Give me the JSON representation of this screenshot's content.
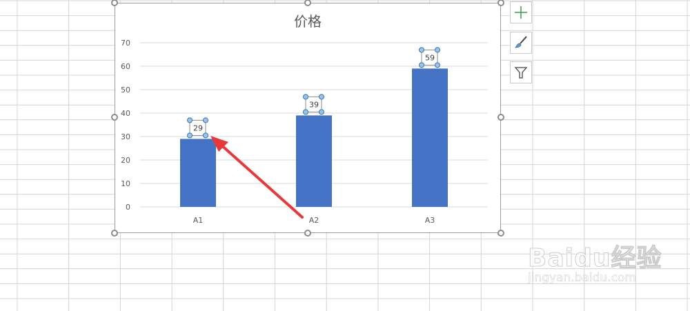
{
  "chart_data": {
    "type": "bar",
    "title": "价格",
    "categories": [
      "A1",
      "A2",
      "A3"
    ],
    "values": [
      29,
      39,
      59
    ],
    "data_labels": [
      "29",
      "39",
      "59"
    ],
    "ylim": [
      0,
      70
    ],
    "yticks": [
      "0",
      "10",
      "20",
      "30",
      "40",
      "50",
      "60",
      "70"
    ],
    "grid": true,
    "bar_color": "#4472C4",
    "data_labels_selected": true
  },
  "side_buttons": [
    {
      "icon": "plus-icon",
      "label": "Chart Elements"
    },
    {
      "icon": "paintbrush-icon",
      "label": "Chart Styles"
    },
    {
      "icon": "filter-icon",
      "label": "Chart Filters"
    }
  ],
  "annotation": {
    "type": "arrow",
    "color": "#E8383A",
    "points_to": "A1 data label"
  },
  "watermark": {
    "logo": "Baidu经验",
    "url": "jingyan.baidu.com"
  }
}
